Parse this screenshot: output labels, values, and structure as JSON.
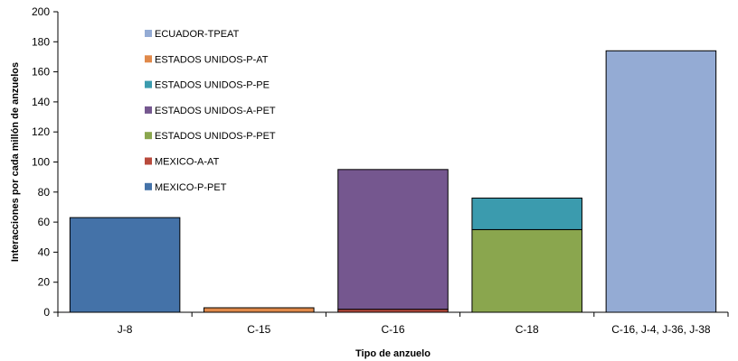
{
  "chart_data": {
    "type": "bar",
    "stacked": true,
    "title": "",
    "xlabel": "Tipo de anzuelo",
    "ylabel": "Interacciones por cada millón de anzuelos",
    "ylim": [
      0,
      200
    ],
    "yticks": [
      0,
      20,
      40,
      60,
      80,
      100,
      120,
      140,
      160,
      180,
      200
    ],
    "grid": false,
    "legend_position": "top-left",
    "categories": [
      "J-8",
      "C-15",
      "C-16",
      "C-18",
      "C-16, J-4, J-36, J-38"
    ],
    "series": [
      {
        "name": "MEXICO-P-PET",
        "color": "#4472a8",
        "values": [
          63,
          0,
          0,
          0,
          0
        ]
      },
      {
        "name": "MEXICO-A-AT",
        "color": "#b84a3c",
        "values": [
          0,
          0,
          2,
          0,
          0
        ]
      },
      {
        "name": "ESTADOS UNIDOS-P-PET",
        "color": "#8aa64e",
        "values": [
          0,
          0,
          0,
          55,
          0
        ]
      },
      {
        "name": "ESTADOS UNIDOS-A-PET",
        "color": "#75578f",
        "values": [
          0,
          0,
          93,
          0,
          0
        ]
      },
      {
        "name": "ESTADOS UNIDOS-P-PE",
        "color": "#3b9bae",
        "values": [
          0,
          0,
          0,
          21,
          0
        ]
      },
      {
        "name": "ESTADOS UNIDOS-P-AT",
        "color": "#e0894a",
        "values": [
          0,
          3,
          0,
          0,
          0
        ]
      },
      {
        "name": "ECUADOR-TPEAT",
        "color": "#94abd4",
        "values": [
          0,
          0,
          0,
          0,
          174
        ]
      }
    ],
    "legend_order": [
      "ECUADOR-TPEAT",
      "ESTADOS UNIDOS-P-AT",
      "ESTADOS UNIDOS-P-PE",
      "ESTADOS UNIDOS-A-PET",
      "ESTADOS UNIDOS-P-PET",
      "MEXICO-A-AT",
      "MEXICO-P-PET"
    ]
  }
}
